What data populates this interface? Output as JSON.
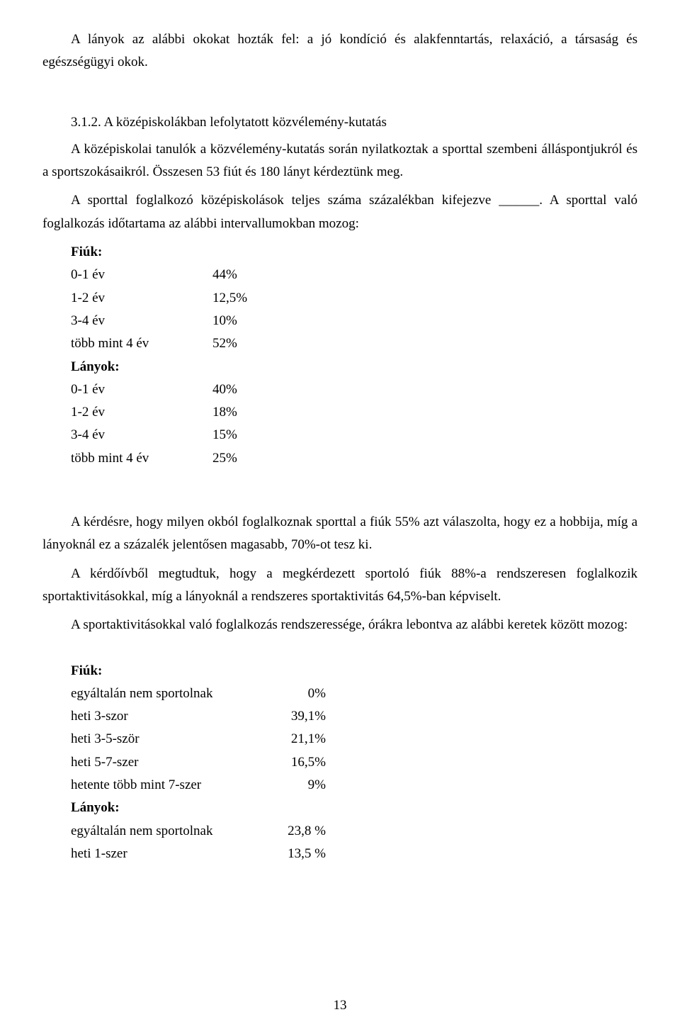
{
  "para1": "A lányok az alábbi okokat hozták fel: a jó kondíció és alakfenntartás, relaxáció, a társaság és egészségügyi okok.",
  "section_num": "3.1.2. A középiskolákban lefolytatott közvélemény-kutatás",
  "para2a": "A középiskolai tanulók a közvélemény-kutatás során nyilatkoztak a sporttal szembeni álláspontjukról és a sportszokásaikról. Összesen 53 fiút és 180 lányt kérdeztünk meg.",
  "para2b_pre": "A sporttal foglalkozó középiskolások teljes száma százalékban kifejezve ______. A sporttal való foglalkozás időtartama az alábbi intervallumokban mozog:",
  "fiuk_label": "Fiúk:",
  "lanyok_label": "Lányok:",
  "list1_fiuk": [
    {
      "label": "0-1 év",
      "val": "44%"
    },
    {
      "label": "1-2  év",
      "val": "12,5%"
    },
    {
      "label": "3-4 év",
      "val": "10%"
    },
    {
      "label": "több mint 4  év",
      "val": "52%"
    }
  ],
  "list1_lanyok": [
    {
      "label": "0-1 év",
      "val": "40%"
    },
    {
      "label": "1-2  év",
      "val": "18%"
    },
    {
      "label": "3-4 év",
      "val": "15%"
    },
    {
      "label": "több mint 4  év",
      "val": "25%"
    }
  ],
  "para3": "A kérdésre, hogy milyen okból foglalkoznak sporttal a fiúk 55% azt válaszolta, hogy ez a hobbija, míg a lányoknál ez a százalék jelentősen magasabb, 70%-ot tesz ki.",
  "para4": "A kérdőívből megtudtuk, hogy a megkérdezett sportoló fiúk 88%-a rendszeresen foglalkozik sportaktivitásokkal, míg a lányoknál a rendszeres sportaktivitás 64,5%-ban képviselt.",
  "para5": "A sportaktivitásokkal való foglalkozás rendszeressége, órákra lebontva az alábbi keretek között mozog:",
  "list2_fiuk": [
    {
      "label": "egyáltalán nem sportolnak",
      "val": "0%"
    },
    {
      "label": "heti 3-szor",
      "val": "39,1%"
    },
    {
      "label": "heti 3-5-ször",
      "val": "21,1%"
    },
    {
      "label": "heti 5-7-szer",
      "val": "16,5%"
    },
    {
      "label": "hetente több mint 7-szer",
      "val": "9%"
    }
  ],
  "list2_lanyok": [
    {
      "label": "egyáltalán nem sportolnak",
      "val": "23,8 %"
    },
    {
      "label": "heti 1-szer",
      "val": "13,5 %"
    }
  ],
  "page_number": "13"
}
